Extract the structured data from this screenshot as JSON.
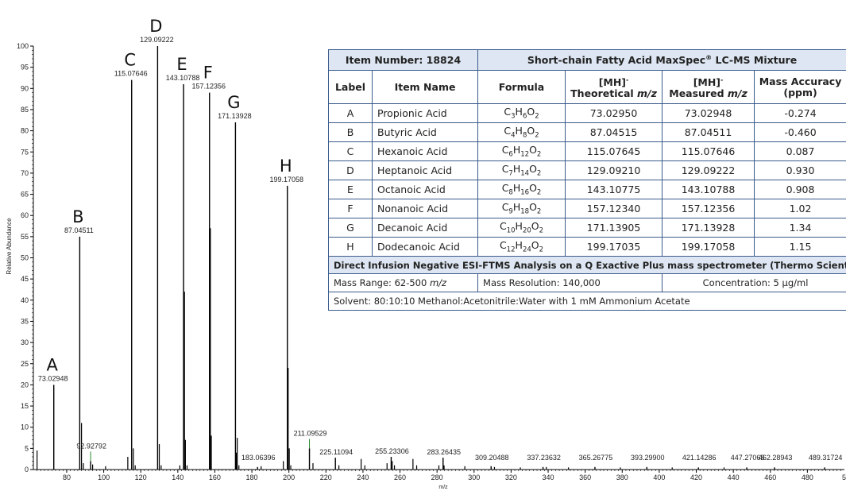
{
  "chart_data": {
    "type": "bar",
    "xlabel": "m/z",
    "ylabel": "Relative Abundance",
    "xlim": [
      62,
      500
    ],
    "ylim": [
      0,
      100
    ],
    "x_ticks": [
      80,
      100,
      120,
      140,
      160,
      180,
      200,
      220,
      240,
      260,
      280,
      300,
      320,
      340,
      360,
      380,
      400,
      420,
      440,
      460,
      480
    ],
    "y_ticks": [
      0,
      5,
      10,
      15,
      20,
      25,
      30,
      35,
      40,
      45,
      50,
      55,
      60,
      65,
      70,
      75,
      80,
      85,
      90,
      95,
      100
    ],
    "edge_tick_label": "5",
    "peaks": [
      {
        "x": 73.02948,
        "y": 20,
        "label": "73.02948",
        "letter": "A"
      },
      {
        "x": 87.04511,
        "y": 55,
        "label": "87.04511",
        "letter": "B"
      },
      {
        "x": 115.07646,
        "y": 92,
        "label": "115.07646",
        "letter": "C"
      },
      {
        "x": 129.09222,
        "y": 100,
        "label": "129.09222",
        "letter": "D"
      },
      {
        "x": 143.10788,
        "y": 91,
        "label": "143.10788",
        "letter": "E"
      },
      {
        "x": 157.12356,
        "y": 89,
        "label": "157.12356",
        "letter": "F"
      },
      {
        "x": 171.13928,
        "y": 82,
        "label": "171.13928",
        "letter": "G"
      },
      {
        "x": 199.17058,
        "y": 67,
        "label": "199.17058",
        "letter": "H"
      },
      {
        "x": 92.92792,
        "y": 2,
        "label": "92.92792"
      },
      {
        "x": 183.06396,
        "y": 0.6,
        "label": "183.06396"
      },
      {
        "x": 211.09529,
        "y": 5,
        "label": "211.09529"
      },
      {
        "x": 225.11094,
        "y": 2.8,
        "label": "225.11094"
      },
      {
        "x": 255.23306,
        "y": 3,
        "label": "255.23306"
      },
      {
        "x": 283.26435,
        "y": 2.8,
        "label": "283.26435"
      },
      {
        "x": 309.20488,
        "y": 0.8,
        "label": "309.20488"
      },
      {
        "x": 337.23632,
        "y": 0.6,
        "label": "337.23632"
      },
      {
        "x": 365.26775,
        "y": 0.6,
        "label": "365.26775"
      },
      {
        "x": 393.299,
        "y": 0.6,
        "label": "393.29900"
      },
      {
        "x": 421.14286,
        "y": 0.5,
        "label": "421.14286"
      },
      {
        "x": 447.27068,
        "y": 0.5,
        "label": "447.27068"
      },
      {
        "x": 462.28943,
        "y": 0.5,
        "label": "462.28943"
      },
      {
        "x": 489.31724,
        "y": 0.5,
        "label": "489.31724"
      }
    ],
    "minor_peaks": [
      {
        "x": 64,
        "y": 4.5
      },
      {
        "x": 88,
        "y": 11
      },
      {
        "x": 89,
        "y": 1.5
      },
      {
        "x": 94,
        "y": 1.2
      },
      {
        "x": 101,
        "y": 0.8
      },
      {
        "x": 113,
        "y": 3
      },
      {
        "x": 116,
        "y": 5
      },
      {
        "x": 117,
        "y": 1
      },
      {
        "x": 130,
        "y": 6
      },
      {
        "x": 131,
        "y": 1
      },
      {
        "x": 141.1,
        "y": 1
      },
      {
        "x": 143.6,
        "y": 42
      },
      {
        "x": 144.1,
        "y": 7
      },
      {
        "x": 145,
        "y": 1
      },
      {
        "x": 157.6,
        "y": 57
      },
      {
        "x": 158.1,
        "y": 8
      },
      {
        "x": 171.6,
        "y": 4
      },
      {
        "x": 172.1,
        "y": 7.5
      },
      {
        "x": 173,
        "y": 1
      },
      {
        "x": 185,
        "y": 0.8
      },
      {
        "x": 197,
        "y": 2
      },
      {
        "x": 199.6,
        "y": 24
      },
      {
        "x": 200.2,
        "y": 5
      },
      {
        "x": 201,
        "y": 1
      },
      {
        "x": 213,
        "y": 1.5
      },
      {
        "x": 227,
        "y": 1
      },
      {
        "x": 239,
        "y": 2.5
      },
      {
        "x": 241,
        "y": 1
      },
      {
        "x": 253,
        "y": 1.5
      },
      {
        "x": 255.8,
        "y": 2
      },
      {
        "x": 257,
        "y": 1
      },
      {
        "x": 267,
        "y": 2.5
      },
      {
        "x": 269,
        "y": 1
      },
      {
        "x": 281,
        "y": 1
      },
      {
        "x": 283.8,
        "y": 1
      },
      {
        "x": 295,
        "y": 0.8
      },
      {
        "x": 311,
        "y": 0.6
      },
      {
        "x": 325,
        "y": 0.5
      },
      {
        "x": 339,
        "y": 0.6
      },
      {
        "x": 351,
        "y": 0.5
      },
      {
        "x": 379,
        "y": 0.5
      },
      {
        "x": 407,
        "y": 0.5
      },
      {
        "x": 435,
        "y": 0.5
      }
    ],
    "series_colors": {
      "spectrum": "#000000",
      "highlight_peak": "#2a8a2a"
    }
  },
  "table": {
    "item_number": "Item Number: 18824",
    "product_name": "Short-chain Fatty Acid MaxSpec",
    "product_mark": "®",
    "product_suffix": " LC-MS Mixture",
    "headers": {
      "label": "Label",
      "item_name": "Item Name",
      "formula": "Formula",
      "ion": "[MH]",
      "ion_charge": "-",
      "theoretical": "Theoretical ",
      "measured": "Measured ",
      "mz": "m/z",
      "accuracy": "Mass Accuracy",
      "accuracy_unit": "(ppm)"
    },
    "rows": [
      {
        "label": "A",
        "name": "Propionic Acid",
        "c": "3",
        "h": "6",
        "o": "2",
        "theoretical": "73.02950",
        "measured": "73.02948",
        "accuracy": "-0.274"
      },
      {
        "label": "B",
        "name": "Butyric Acid",
        "c": "4",
        "h": "8",
        "o": "2",
        "theoretical": "87.04515",
        "measured": "87.04511",
        "accuracy": "-0.460"
      },
      {
        "label": "C",
        "name": "Hexanoic Acid",
        "c": "6",
        "h": "12",
        "o": "2",
        "theoretical": "115.07645",
        "measured": "115.07646",
        "accuracy": "0.087"
      },
      {
        "label": "D",
        "name": "Heptanoic Acid",
        "c": "7",
        "h": "14",
        "o": "2",
        "theoretical": "129.09210",
        "measured": "129.09222",
        "accuracy": "0.930"
      },
      {
        "label": "E",
        "name": "Octanoic Acid",
        "c": "8",
        "h": "16",
        "o": "2",
        "theoretical": "143.10775",
        "measured": "143.10788",
        "accuracy": "0.908"
      },
      {
        "label": "F",
        "name": "Nonanoic Acid",
        "c": "9",
        "h": "18",
        "o": "2",
        "theoretical": "157.12340",
        "measured": "157.12356",
        "accuracy": "1.02"
      },
      {
        "label": "G",
        "name": "Decanoic Acid",
        "c": "10",
        "h": "20",
        "o": "2",
        "theoretical": "171.13905",
        "measured": "171.13928",
        "accuracy": "1.34"
      },
      {
        "label": "H",
        "name": "Dodecanoic Acid",
        "c": "12",
        "h": "24",
        "o": "2",
        "theoretical": "199.17035",
        "measured": "199.17058",
        "accuracy": "1.15"
      }
    ],
    "analysis_title": "Direct Infusion Negative ESI-FTMS Analysis on a Q Exactive Plus mass spectrometer (Thermo Scientific)",
    "mass_range_prefix": "Mass Range: 62-500 ",
    "mass_range_unit": "m/z",
    "mass_resolution": "Mass Resolution: 140,000",
    "concentration": "Concentration: 5 µg/ml",
    "solvent": "Solvent: 80:10:10 Methanol:Acetonitrile:Water with 1 mM Ammonium Acetate",
    "border_color": "#3a5b8c",
    "header_fill": "#dde6f2"
  }
}
